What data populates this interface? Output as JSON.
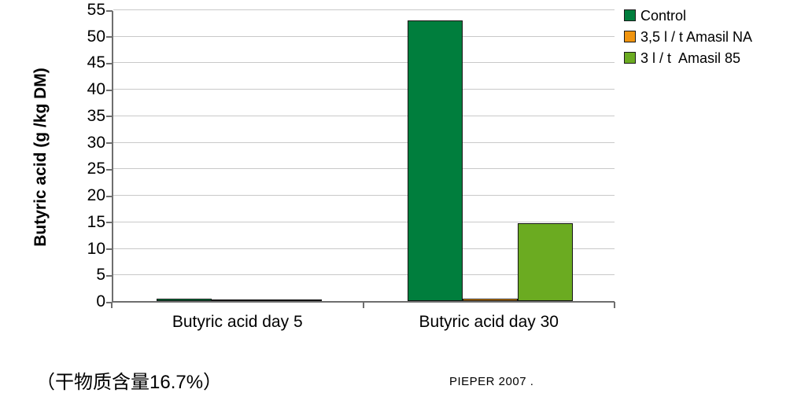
{
  "chart_data": {
    "type": "bar",
    "title": "",
    "ylabel": "Butyric acid (g /kg DM)",
    "xlabel": "",
    "ylim": [
      0,
      55
    ],
    "ytick_step": 5,
    "grid": true,
    "legend_position": "top-right",
    "categories": [
      "Butyric acid day 5",
      "Butyric acid day 30"
    ],
    "series": [
      {
        "name": "Control",
        "color": "#007E3D",
        "values": [
          0.5,
          53
        ]
      },
      {
        "name": "3,5 l / t Amasil NA",
        "color": "#F0940F",
        "values": [
          0.15,
          0.4
        ]
      },
      {
        "name": "3 l / t  Amasil 85",
        "color": "#6BAB21",
        "values": [
          0.15,
          14.7
        ]
      }
    ]
  },
  "footnotes": {
    "left": "（干物质含量16.7%）",
    "source": "PIEPER 2007 ."
  },
  "colors": {
    "axis": "#6E6E6E",
    "gridline": "#C9C9C9",
    "bar_border": "#141414",
    "text": "#000000"
  }
}
